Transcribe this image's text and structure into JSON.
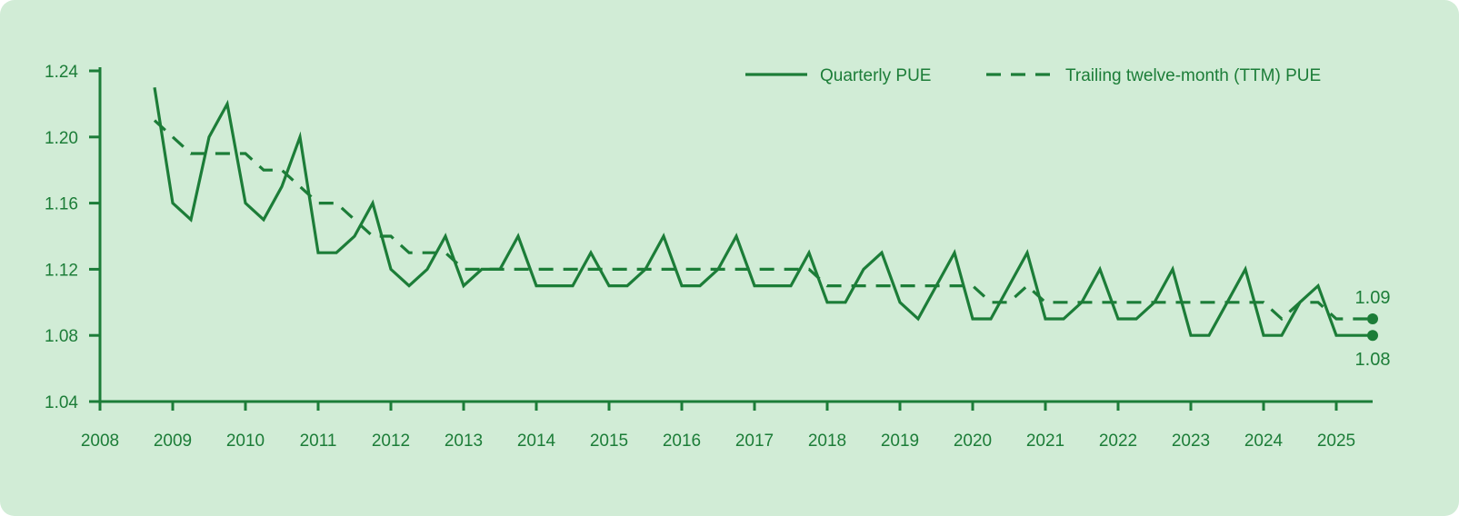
{
  "colors": {
    "background": "#d1ecd6",
    "accent": "#1c7d38"
  },
  "chart_data": {
    "type": "line",
    "title": "",
    "xlabel": "",
    "ylabel": "",
    "xlim": [
      2008,
      2025.5
    ],
    "ylim": [
      1.04,
      1.24
    ],
    "x_ticks": [
      "2008",
      "2009",
      "2010",
      "2011",
      "2012",
      "2013",
      "2014",
      "2015",
      "2016",
      "2017",
      "2018",
      "2019",
      "2020",
      "2021",
      "2022",
      "2023",
      "2024",
      "2025"
    ],
    "y_ticks": [
      "1.04",
      "1.08",
      "1.12",
      "1.16",
      "1.20",
      "1.24"
    ],
    "grid": false,
    "legend_position": "top-right",
    "x": [
      2008.75,
      2009,
      2009.25,
      2009.5,
      2009.75,
      2010,
      2010.25,
      2010.5,
      2010.75,
      2011,
      2011.25,
      2011.5,
      2011.75,
      2012,
      2012.25,
      2012.5,
      2012.75,
      2013,
      2013.25,
      2013.5,
      2013.75,
      2014,
      2014.25,
      2014.5,
      2014.75,
      2015,
      2015.25,
      2015.5,
      2015.75,
      2016,
      2016.25,
      2016.5,
      2016.75,
      2017,
      2017.25,
      2017.5,
      2017.75,
      2018,
      2018.25,
      2018.5,
      2018.75,
      2019,
      2019.25,
      2019.5,
      2019.75,
      2020,
      2020.25,
      2020.5,
      2020.75,
      2021,
      2021.25,
      2021.5,
      2021.75,
      2022,
      2022.25,
      2022.5,
      2022.75,
      2023,
      2023.25,
      2023.5,
      2023.75,
      2024,
      2024.25,
      2024.5,
      2024.75,
      2025,
      2025.25,
      2025.5
    ],
    "series": [
      {
        "name": "Quarterly PUE",
        "style": "solid",
        "values": [
          1.23,
          1.16,
          1.15,
          1.2,
          1.22,
          1.16,
          1.15,
          1.17,
          1.2,
          1.13,
          1.13,
          1.14,
          1.16,
          1.12,
          1.11,
          1.12,
          1.14,
          1.11,
          1.12,
          1.12,
          1.14,
          1.11,
          1.11,
          1.11,
          1.13,
          1.11,
          1.11,
          1.12,
          1.14,
          1.11,
          1.11,
          1.12,
          1.14,
          1.11,
          1.11,
          1.11,
          1.13,
          1.1,
          1.1,
          1.12,
          1.13,
          1.1,
          1.09,
          1.11,
          1.13,
          1.09,
          1.09,
          1.11,
          1.13,
          1.09,
          1.09,
          1.1,
          1.12,
          1.09,
          1.09,
          1.1,
          1.12,
          1.08,
          1.08,
          1.1,
          1.12,
          1.08,
          1.08,
          1.1,
          1.11,
          1.08,
          1.08,
          1.08
        ]
      },
      {
        "name": "Trailing twelve-month (TTM) PUE",
        "style": "dashed",
        "values": [
          1.21,
          1.2,
          1.19,
          1.19,
          1.19,
          1.19,
          1.18,
          1.18,
          1.17,
          1.16,
          1.16,
          1.15,
          1.14,
          1.14,
          1.13,
          1.13,
          1.13,
          1.12,
          1.12,
          1.12,
          1.12,
          1.12,
          1.12,
          1.12,
          1.12,
          1.12,
          1.12,
          1.12,
          1.12,
          1.12,
          1.12,
          1.12,
          1.12,
          1.12,
          1.12,
          1.12,
          1.12,
          1.11,
          1.11,
          1.11,
          1.11,
          1.11,
          1.11,
          1.11,
          1.11,
          1.11,
          1.1,
          1.1,
          1.11,
          1.1,
          1.1,
          1.1,
          1.1,
          1.1,
          1.1,
          1.1,
          1.1,
          1.1,
          1.1,
          1.1,
          1.1,
          1.1,
          1.09,
          1.1,
          1.1,
          1.09,
          1.09,
          1.09
        ]
      }
    ],
    "annotations": [
      {
        "series": "Trailing twelve-month (TTM) PUE",
        "text": "1.09",
        "x": 2025.5,
        "y": 1.09
      },
      {
        "series": "Quarterly PUE",
        "text": "1.08",
        "x": 2025.5,
        "y": 1.08
      }
    ]
  }
}
